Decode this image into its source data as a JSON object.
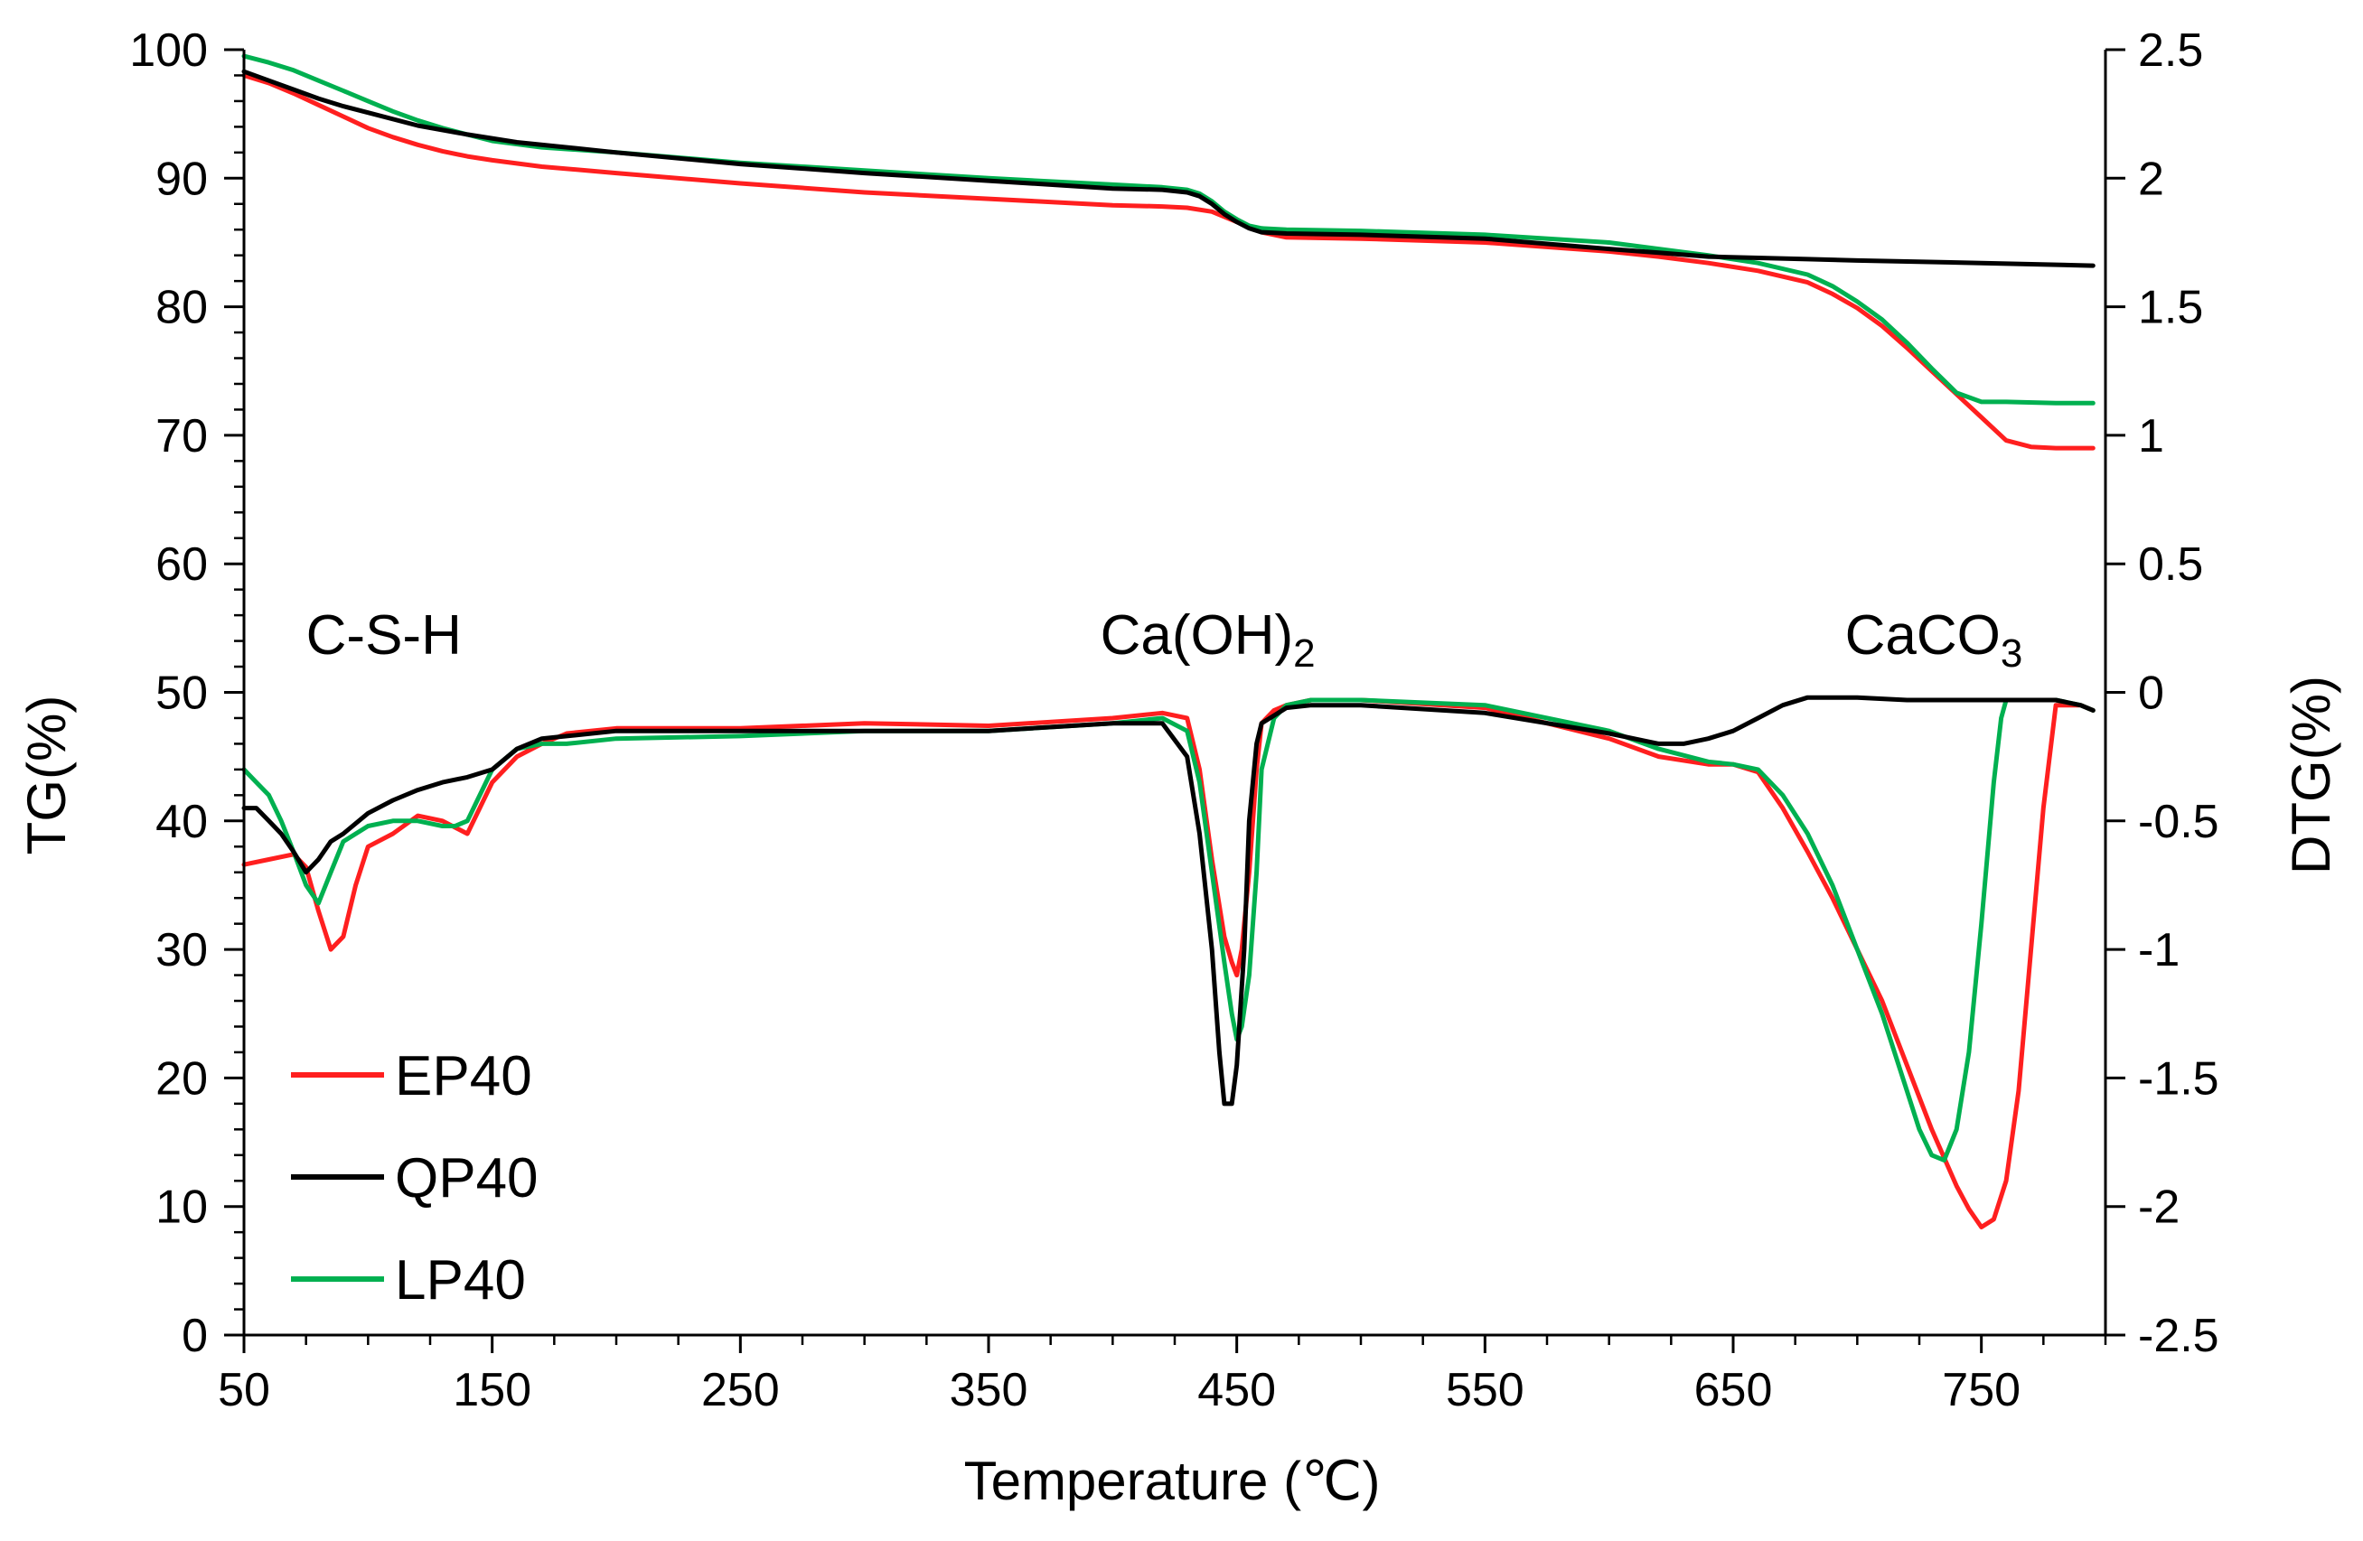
{
  "chart_data": {
    "type": "line",
    "title": "",
    "xlabel": "Temperature (℃)",
    "ylabel_left": "TG(%)",
    "ylabel_right": "DTG(%)",
    "xlim": [
      50,
      800
    ],
    "ylim_left": [
      0,
      100
    ],
    "ylim_right": [
      -2.5,
      2.5
    ],
    "x_ticks": [
      50,
      150,
      250,
      350,
      450,
      550,
      650,
      750
    ],
    "y_left_ticks": [
      0,
      10,
      20,
      30,
      40,
      50,
      60,
      70,
      80,
      90,
      100
    ],
    "y_right_ticks": [
      -2.5,
      -2,
      -1.5,
      -1,
      -0.5,
      0,
      0.5,
      1,
      1.5,
      2,
      2.5
    ],
    "y_right_tick_labels": [
      "-2.5",
      "-2",
      "-1.5",
      "-1",
      "-0.5",
      "0",
      "0.5",
      "1",
      "1.5",
      "2",
      "2.5"
    ],
    "grid": false,
    "legend_position": "bottom-left",
    "annotations": [
      {
        "text": "C-S-H",
        "x": 75,
        "y": 53
      },
      {
        "text": "Ca(OH)",
        "sub": "2",
        "x": 395,
        "y": 53
      },
      {
        "text": "CaCO",
        "sub": "3",
        "x": 695,
        "y": 53
      }
    ],
    "series": [
      {
        "name": "EP40",
        "color": "#ff1f1f",
        "tg": {
          "x": [
            50,
            60,
            70,
            80,
            90,
            100,
            110,
            120,
            130,
            140,
            150,
            170,
            200,
            250,
            300,
            350,
            400,
            420,
            430,
            440,
            450,
            460,
            470,
            500,
            550,
            600,
            620,
            640,
            660,
            680,
            690,
            700,
            710,
            720,
            730,
            740,
            750,
            760,
            770,
            780,
            795
          ],
          "y": [
            98,
            97.4,
            96.6,
            95.7,
            94.8,
            93.9,
            93.2,
            92.6,
            92.1,
            91.7,
            91.4,
            90.9,
            90.4,
            89.6,
            88.9,
            88.4,
            87.9,
            87.8,
            87.7,
            87.4,
            86.6,
            85.8,
            85.4,
            85.3,
            85.0,
            84.3,
            83.9,
            83.4,
            82.8,
            81.9,
            81.0,
            79.9,
            78.5,
            76.8,
            75.0,
            73.2,
            71.4,
            69.6,
            69.1,
            69.0,
            69.0
          ]
        },
        "dtg": {
          "x": [
            50,
            60,
            70,
            75,
            80,
            85,
            90,
            95,
            100,
            110,
            120,
            130,
            140,
            150,
            160,
            170,
            180,
            200,
            250,
            300,
            350,
            400,
            420,
            430,
            435,
            440,
            445,
            448,
            450,
            452,
            455,
            458,
            460,
            465,
            470,
            480,
            500,
            550,
            600,
            620,
            640,
            650,
            660,
            670,
            680,
            690,
            700,
            710,
            720,
            730,
            740,
            745,
            750,
            755,
            760,
            765,
            770,
            775,
            780,
            790,
            795
          ],
          "y": [
            -0.67,
            -0.65,
            -0.63,
            -0.68,
            -0.85,
            -1.0,
            -0.95,
            -0.75,
            -0.6,
            -0.55,
            -0.48,
            -0.5,
            -0.55,
            -0.35,
            -0.25,
            -0.2,
            -0.16,
            -0.14,
            -0.14,
            -0.12,
            -0.13,
            -0.1,
            -0.08,
            -0.1,
            -0.3,
            -0.65,
            -0.95,
            -1.05,
            -1.1,
            -1.0,
            -0.7,
            -0.3,
            -0.12,
            -0.07,
            -0.05,
            -0.03,
            -0.03,
            -0.06,
            -0.18,
            -0.25,
            -0.28,
            -0.28,
            -0.31,
            -0.45,
            -0.62,
            -0.8,
            -1.0,
            -1.2,
            -1.45,
            -1.7,
            -1.92,
            -2.01,
            -2.08,
            -2.05,
            -1.9,
            -1.55,
            -1.0,
            -0.45,
            -0.05,
            -0.05,
            -0.07
          ]
        }
      },
      {
        "name": "QP40",
        "color": "#000000",
        "tg": {
          "x": [
            50,
            60,
            70,
            80,
            90,
            100,
            120,
            140,
            160,
            180,
            200,
            250,
            300,
            350,
            400,
            420,
            430,
            435,
            440,
            445,
            450,
            455,
            460,
            470,
            500,
            550,
            600,
            620,
            640,
            660,
            680,
            700,
            750,
            795
          ],
          "y": [
            98.3,
            97.6,
            96.9,
            96.2,
            95.6,
            95.1,
            94.1,
            93.4,
            92.8,
            92.4,
            92.0,
            91.1,
            90.4,
            89.8,
            89.2,
            89.1,
            88.9,
            88.6,
            88.0,
            87.2,
            86.6,
            86.1,
            85.8,
            85.7,
            85.6,
            85.3,
            84.5,
            84.2,
            83.9,
            83.8,
            83.7,
            83.6,
            83.4,
            83.2
          ]
        },
        "dtg": {
          "x": [
            50,
            55,
            60,
            65,
            70,
            75,
            80,
            85,
            90,
            100,
            110,
            120,
            130,
            140,
            150,
            160,
            170,
            180,
            200,
            250,
            300,
            350,
            400,
            420,
            430,
            435,
            440,
            443,
            445,
            448,
            450,
            453,
            455,
            458,
            460,
            470,
            480,
            500,
            550,
            600,
            610,
            620,
            630,
            640,
            650,
            660,
            670,
            680,
            700,
            720,
            750,
            770,
            780,
            790,
            795
          ],
          "y": [
            -0.45,
            -0.45,
            -0.5,
            -0.55,
            -0.62,
            -0.7,
            -0.65,
            -0.58,
            -0.55,
            -0.47,
            -0.42,
            -0.38,
            -0.35,
            -0.33,
            -0.3,
            -0.22,
            -0.18,
            -0.17,
            -0.15,
            -0.15,
            -0.15,
            -0.15,
            -0.12,
            -0.12,
            -0.25,
            -0.55,
            -1.0,
            -1.4,
            -1.6,
            -1.6,
            -1.45,
            -1.0,
            -0.5,
            -0.2,
            -0.12,
            -0.06,
            -0.05,
            -0.05,
            -0.08,
            -0.16,
            -0.18,
            -0.2,
            -0.2,
            -0.18,
            -0.15,
            -0.1,
            -0.05,
            -0.02,
            -0.02,
            -0.03,
            -0.03,
            -0.03,
            -0.03,
            -0.05,
            -0.07
          ]
        }
      },
      {
        "name": "LP40",
        "color": "#00b050",
        "tg": {
          "x": [
            50,
            60,
            70,
            80,
            90,
            100,
            110,
            120,
            130,
            140,
            150,
            170,
            200,
            250,
            300,
            350,
            400,
            420,
            430,
            435,
            440,
            445,
            450,
            455,
            460,
            470,
            500,
            550,
            600,
            620,
            640,
            660,
            680,
            690,
            700,
            710,
            720,
            730,
            740,
            750,
            760,
            780,
            795
          ],
          "y": [
            99.5,
            99.0,
            98.4,
            97.6,
            96.8,
            96.0,
            95.2,
            94.5,
            93.9,
            93.4,
            92.9,
            92.4,
            92.0,
            91.2,
            90.6,
            90.0,
            89.5,
            89.3,
            89.1,
            88.8,
            88.2,
            87.4,
            86.8,
            86.3,
            86.1,
            86.0,
            85.9,
            85.6,
            85.0,
            84.5,
            84.0,
            83.4,
            82.5,
            81.6,
            80.4,
            79.0,
            77.2,
            75.2,
            73.3,
            72.6,
            72.6,
            72.5,
            72.5
          ]
        },
        "dtg": {
          "x": [
            50,
            55,
            60,
            65,
            70,
            75,
            80,
            85,
            90,
            100,
            110,
            120,
            130,
            135,
            140,
            150,
            160,
            170,
            180,
            200,
            250,
            300,
            350,
            400,
            420,
            430,
            435,
            440,
            445,
            448,
            450,
            452,
            455,
            458,
            460,
            465,
            470,
            480,
            500,
            550,
            600,
            620,
            640,
            650,
            660,
            670,
            680,
            690,
            700,
            710,
            720,
            725,
            730,
            735,
            740,
            745,
            750,
            755,
            758,
            760,
            770,
            780,
            790,
            795
          ],
          "y": [
            -0.3,
            -0.35,
            -0.4,
            -0.5,
            -0.62,
            -0.75,
            -0.82,
            -0.7,
            -0.58,
            -0.52,
            -0.5,
            -0.5,
            -0.52,
            -0.52,
            -0.5,
            -0.3,
            -0.22,
            -0.2,
            -0.2,
            -0.18,
            -0.17,
            -0.15,
            -0.15,
            -0.12,
            -0.1,
            -0.15,
            -0.35,
            -0.7,
            -1.05,
            -1.25,
            -1.35,
            -1.3,
            -1.1,
            -0.7,
            -0.3,
            -0.1,
            -0.05,
            -0.03,
            -0.03,
            -0.05,
            -0.15,
            -0.22,
            -0.27,
            -0.28,
            -0.3,
            -0.4,
            -0.55,
            -0.75,
            -1.0,
            -1.25,
            -1.55,
            -1.7,
            -1.8,
            -1.82,
            -1.7,
            -1.4,
            -0.9,
            -0.35,
            -0.1,
            -0.03,
            -0.03,
            -0.03,
            -0.05,
            -0.07
          ]
        }
      }
    ]
  }
}
